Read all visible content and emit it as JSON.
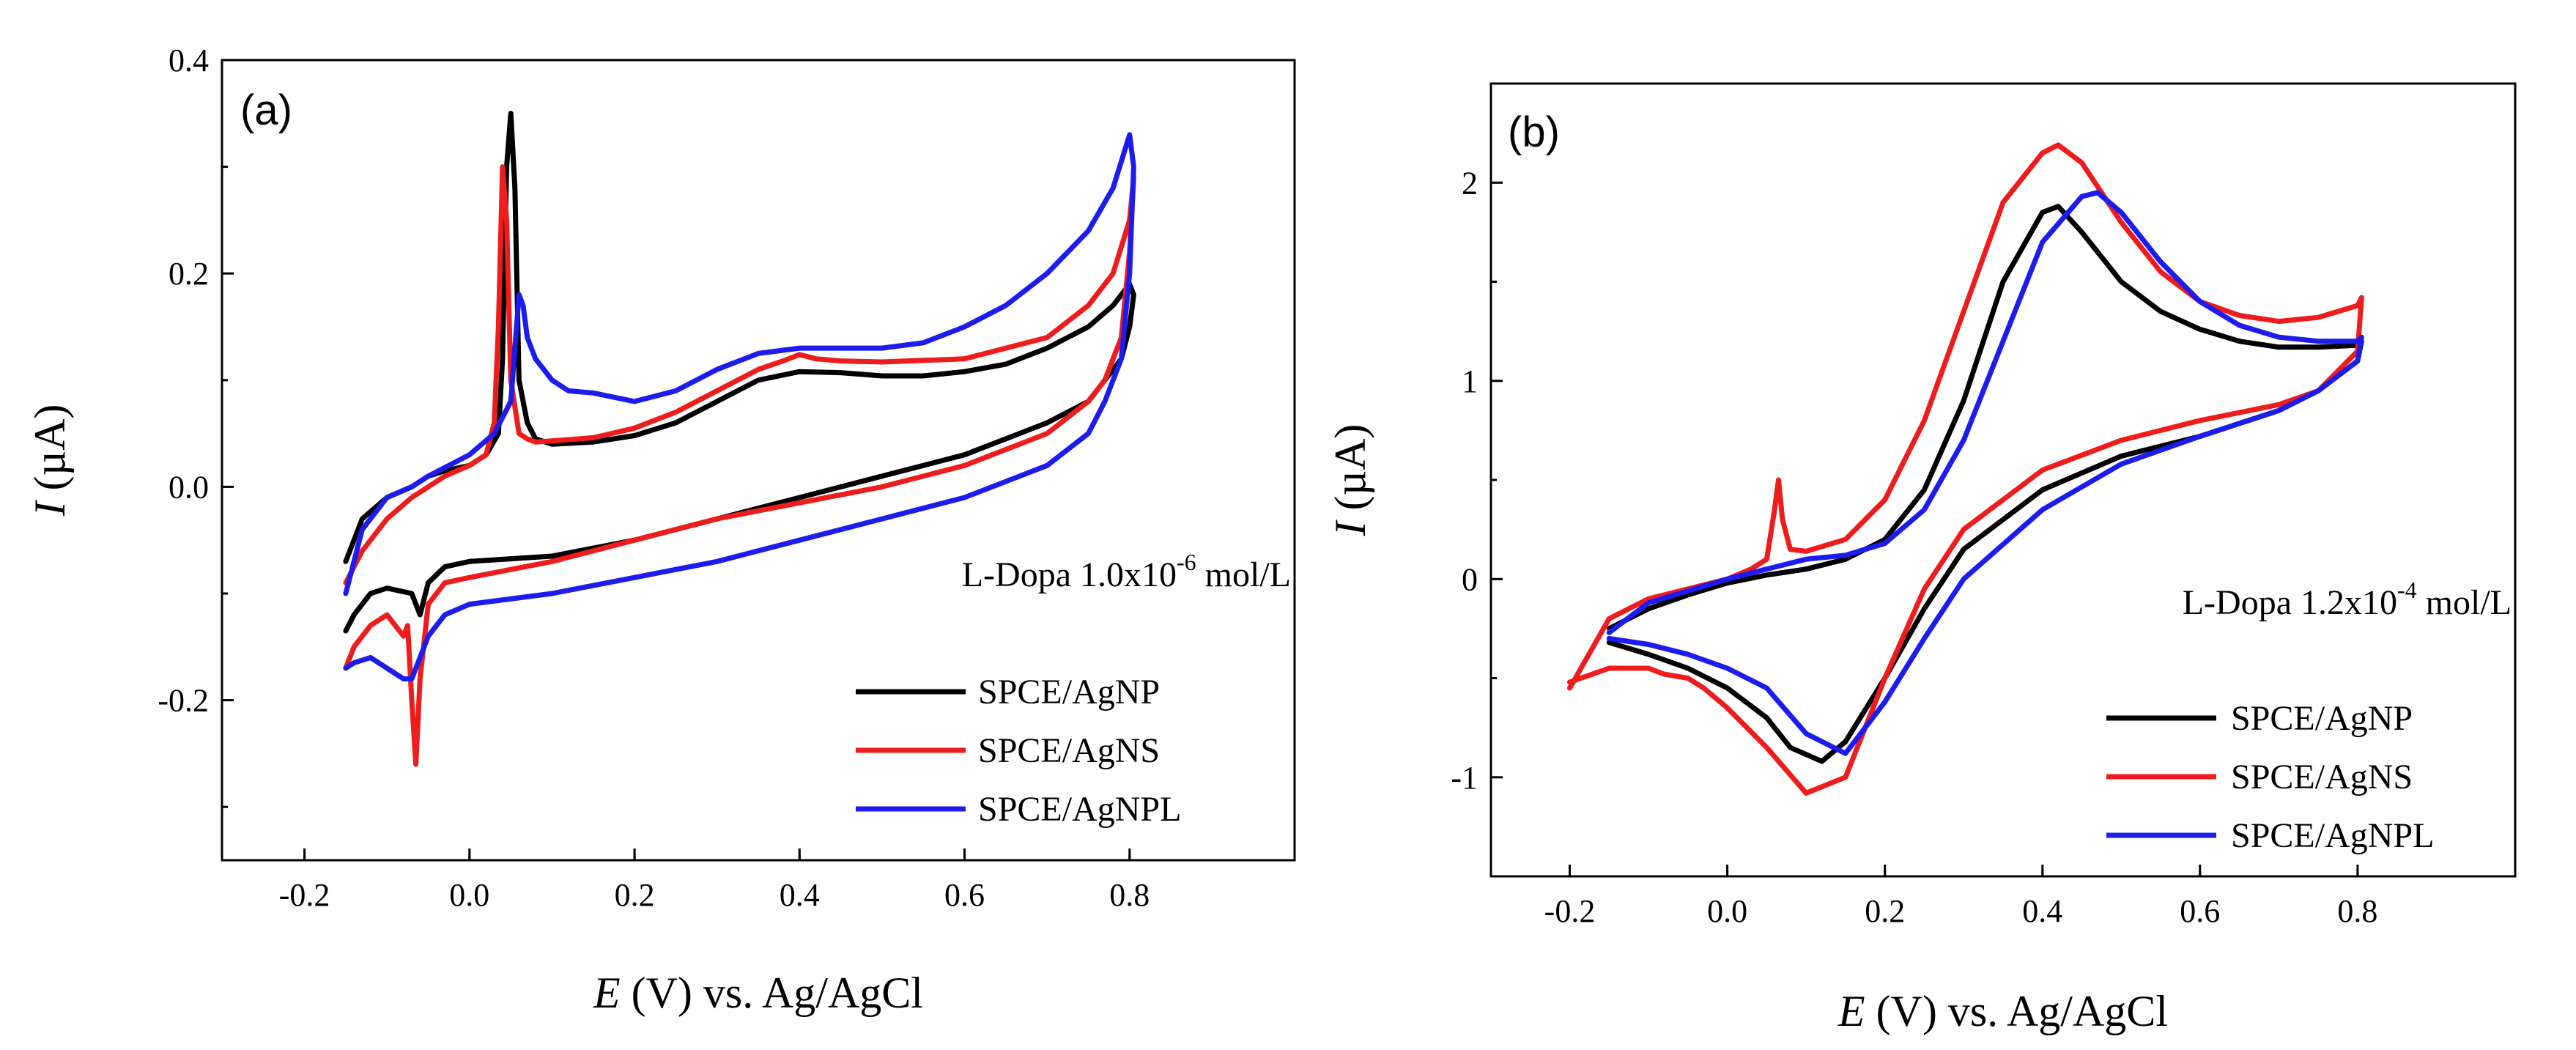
{
  "chart_data": [
    {
      "type": "line",
      "panel_label": "(a)",
      "xlabel_italic": "E",
      "xlabel_rest": " (V) vs. Ag/AgCl",
      "ylabel_italic": "I",
      "ylabel_rest": " (µA)",
      "xlim": [
        -0.3,
        1.0
      ],
      "ylim": [
        -0.35,
        0.4
      ],
      "xticks": [
        -0.2,
        0.0,
        0.2,
        0.4,
        0.6,
        0.8
      ],
      "xtick_labels": [
        "-0.2",
        "0.0",
        "0.2",
        "0.4",
        "0.6",
        "0.8"
      ],
      "yticks": [
        -0.2,
        0.0,
        0.2,
        0.4
      ],
      "ytick_labels": [
        "-0.2",
        "0.0",
        "0.2",
        "0.4"
      ],
      "annotation": {
        "base": "L-Dopa 1.0x10",
        "exp": "-6",
        "unit": " mol/L"
      },
      "legend_position": "bottom-right",
      "series": [
        {
          "name": "SPCE/AgNP",
          "color": "#000000",
          "x": [
            -0.15,
            -0.13,
            -0.1,
            -0.07,
            -0.05,
            -0.03,
            0.0,
            0.02,
            0.035,
            0.04,
            0.045,
            0.05,
            0.055,
            0.06,
            0.07,
            0.08,
            0.1,
            0.15,
            0.2,
            0.25,
            0.3,
            0.35,
            0.4,
            0.45,
            0.5,
            0.55,
            0.6,
            0.65,
            0.7,
            0.75,
            0.78,
            0.8,
            0.805,
            0.8,
            0.79,
            0.77,
            0.75,
            0.7,
            0.6,
            0.5,
            0.4,
            0.3,
            0.2,
            0.1,
            0.0,
            -0.03,
            -0.05,
            -0.06,
            -0.07,
            -0.1,
            -0.12,
            -0.14,
            -0.15
          ],
          "y": [
            -0.07,
            -0.03,
            -0.01,
            0.0,
            0.01,
            0.015,
            0.02,
            0.03,
            0.05,
            0.12,
            0.3,
            0.35,
            0.28,
            0.1,
            0.06,
            0.045,
            0.04,
            0.042,
            0.048,
            0.06,
            0.08,
            0.1,
            0.108,
            0.107,
            0.104,
            0.104,
            0.108,
            0.115,
            0.13,
            0.15,
            0.17,
            0.19,
            0.18,
            0.15,
            0.12,
            0.1,
            0.08,
            0.06,
            0.03,
            0.01,
            -0.01,
            -0.03,
            -0.05,
            -0.065,
            -0.07,
            -0.075,
            -0.09,
            -0.12,
            -0.1,
            -0.095,
            -0.1,
            -0.12,
            -0.135
          ]
        },
        {
          "name": "SPCE/AgNS",
          "color": "#ee1c1c",
          "x": [
            -0.15,
            -0.13,
            -0.1,
            -0.07,
            -0.05,
            -0.03,
            0.0,
            0.02,
            0.03,
            0.035,
            0.04,
            0.045,
            0.05,
            0.06,
            0.07,
            0.08,
            0.1,
            0.15,
            0.2,
            0.25,
            0.3,
            0.35,
            0.38,
            0.4,
            0.42,
            0.45,
            0.5,
            0.6,
            0.7,
            0.75,
            0.78,
            0.8,
            0.805,
            0.8,
            0.79,
            0.77,
            0.75,
            0.7,
            0.6,
            0.5,
            0.4,
            0.3,
            0.2,
            0.1,
            0.0,
            -0.03,
            -0.05,
            -0.06,
            -0.065,
            -0.07,
            -0.075,
            -0.08,
            -0.1,
            -0.12,
            -0.14,
            -0.15
          ],
          "y": [
            -0.09,
            -0.06,
            -0.03,
            -0.01,
            0.0,
            0.01,
            0.02,
            0.03,
            0.06,
            0.15,
            0.3,
            0.25,
            0.1,
            0.05,
            0.045,
            0.042,
            0.043,
            0.046,
            0.055,
            0.07,
            0.09,
            0.11,
            0.118,
            0.124,
            0.12,
            0.118,
            0.117,
            0.12,
            0.14,
            0.17,
            0.2,
            0.25,
            0.29,
            0.22,
            0.14,
            0.1,
            0.08,
            0.05,
            0.02,
            0.0,
            -0.015,
            -0.03,
            -0.05,
            -0.07,
            -0.085,
            -0.09,
            -0.11,
            -0.18,
            -0.26,
            -0.2,
            -0.13,
            -0.14,
            -0.12,
            -0.13,
            -0.15,
            -0.17
          ]
        },
        {
          "name": "SPCE/AgNPL",
          "color": "#1c1cee",
          "x": [
            -0.15,
            -0.13,
            -0.1,
            -0.07,
            -0.05,
            0.0,
            0.03,
            0.05,
            0.06,
            0.065,
            0.07,
            0.08,
            0.1,
            0.12,
            0.15,
            0.2,
            0.25,
            0.3,
            0.35,
            0.4,
            0.45,
            0.5,
            0.55,
            0.6,
            0.65,
            0.7,
            0.75,
            0.78,
            0.8,
            0.805,
            0.8,
            0.79,
            0.77,
            0.75,
            0.7,
            0.6,
            0.5,
            0.4,
            0.3,
            0.2,
            0.1,
            0.0,
            -0.03,
            -0.05,
            -0.06,
            -0.07,
            -0.08,
            -0.1,
            -0.12,
            -0.14,
            -0.15
          ],
          "y": [
            -0.1,
            -0.04,
            -0.01,
            0.0,
            0.01,
            0.03,
            0.05,
            0.08,
            0.18,
            0.17,
            0.14,
            0.12,
            0.1,
            0.09,
            0.088,
            0.08,
            0.09,
            0.11,
            0.125,
            0.13,
            0.13,
            0.13,
            0.135,
            0.15,
            0.17,
            0.2,
            0.24,
            0.28,
            0.33,
            0.3,
            0.2,
            0.12,
            0.08,
            0.05,
            0.02,
            -0.01,
            -0.03,
            -0.05,
            -0.07,
            -0.085,
            -0.1,
            -0.11,
            -0.12,
            -0.14,
            -0.16,
            -0.18,
            -0.18,
            -0.17,
            -0.16,
            -0.165,
            -0.17
          ]
        }
      ]
    },
    {
      "type": "line",
      "panel_label": "(b)",
      "xlabel_italic": "E",
      "xlabel_rest": " (V) vs. Ag/AgCl",
      "ylabel_italic": "I",
      "ylabel_rest": " (µA)",
      "xlim": [
        -0.3,
        1.0
      ],
      "ylim": [
        -1.5,
        2.5
      ],
      "xticks": [
        -0.2,
        0.0,
        0.2,
        0.4,
        0.6,
        0.8
      ],
      "xtick_labels": [
        "-0.2",
        "0.0",
        "0.2",
        "0.4",
        "0.6",
        "0.8"
      ],
      "yticks": [
        -1,
        0,
        1,
        2
      ],
      "ytick_labels": [
        "-1",
        "0",
        "1",
        "2"
      ],
      "annotation": {
        "base": "L-Dopa 1.2x10",
        "exp": "-4",
        "unit": " mol/L"
      },
      "legend_position": "bottom-right",
      "series": [
        {
          "name": "SPCE/AgNP",
          "color": "#000000",
          "x": [
            -0.15,
            -0.1,
            -0.05,
            0.0,
            0.05,
            0.1,
            0.15,
            0.2,
            0.25,
            0.3,
            0.35,
            0.4,
            0.42,
            0.45,
            0.5,
            0.55,
            0.6,
            0.65,
            0.7,
            0.75,
            0.8,
            0.805,
            0.8,
            0.75,
            0.7,
            0.6,
            0.5,
            0.4,
            0.3,
            0.25,
            0.2,
            0.15,
            0.12,
            0.08,
            0.05,
            0.0,
            -0.05,
            -0.1,
            -0.15
          ],
          "y": [
            -0.25,
            -0.15,
            -0.08,
            -0.02,
            0.02,
            0.05,
            0.1,
            0.2,
            0.45,
            0.9,
            1.5,
            1.85,
            1.88,
            1.75,
            1.5,
            1.35,
            1.26,
            1.2,
            1.17,
            1.17,
            1.18,
            1.2,
            1.1,
            0.95,
            0.85,
            0.72,
            0.62,
            0.45,
            0.15,
            -0.15,
            -0.5,
            -0.82,
            -0.92,
            -0.85,
            -0.7,
            -0.55,
            -0.45,
            -0.38,
            -0.32
          ]
        },
        {
          "name": "SPCE/AgNS",
          "color": "#ee1c1c",
          "x": [
            -0.2,
            -0.15,
            -0.1,
            -0.05,
            0.0,
            0.03,
            0.05,
            0.06,
            0.065,
            0.07,
            0.08,
            0.1,
            0.15,
            0.2,
            0.25,
            0.3,
            0.35,
            0.4,
            0.42,
            0.45,
            0.5,
            0.55,
            0.6,
            0.65,
            0.7,
            0.75,
            0.8,
            0.805,
            0.8,
            0.75,
            0.7,
            0.6,
            0.5,
            0.4,
            0.3,
            0.25,
            0.2,
            0.15,
            0.1,
            0.05,
            0.0,
            -0.03,
            -0.05,
            -0.08,
            -0.1,
            -0.15,
            -0.2
          ],
          "y": [
            -0.55,
            -0.2,
            -0.1,
            -0.05,
            0.0,
            0.05,
            0.1,
            0.35,
            0.5,
            0.3,
            0.15,
            0.14,
            0.2,
            0.4,
            0.8,
            1.35,
            1.9,
            2.15,
            2.19,
            2.1,
            1.8,
            1.55,
            1.4,
            1.33,
            1.3,
            1.32,
            1.38,
            1.42,
            1.15,
            0.95,
            0.88,
            0.8,
            0.7,
            0.55,
            0.25,
            -0.05,
            -0.5,
            -1.0,
            -1.08,
            -0.85,
            -0.65,
            -0.55,
            -0.5,
            -0.48,
            -0.45,
            -0.45,
            -0.52
          ]
        },
        {
          "name": "SPCE/AgNPL",
          "color": "#1c1cee",
          "x": [
            -0.15,
            -0.1,
            -0.05,
            0.0,
            0.05,
            0.1,
            0.15,
            0.2,
            0.25,
            0.3,
            0.35,
            0.4,
            0.45,
            0.47,
            0.5,
            0.55,
            0.6,
            0.65,
            0.7,
            0.75,
            0.8,
            0.805,
            0.8,
            0.75,
            0.7,
            0.6,
            0.5,
            0.4,
            0.3,
            0.25,
            0.2,
            0.15,
            0.1,
            0.05,
            0.0,
            -0.05,
            -0.1,
            -0.15
          ],
          "y": [
            -0.27,
            -0.12,
            -0.06,
            0.0,
            0.05,
            0.1,
            0.12,
            0.18,
            0.35,
            0.7,
            1.2,
            1.7,
            1.93,
            1.95,
            1.85,
            1.6,
            1.4,
            1.28,
            1.22,
            1.2,
            1.2,
            1.22,
            1.1,
            0.95,
            0.85,
            0.72,
            0.58,
            0.35,
            0.0,
            -0.3,
            -0.62,
            -0.88,
            -0.78,
            -0.55,
            -0.45,
            -0.38,
            -0.33,
            -0.3
          ]
        }
      ]
    }
  ]
}
